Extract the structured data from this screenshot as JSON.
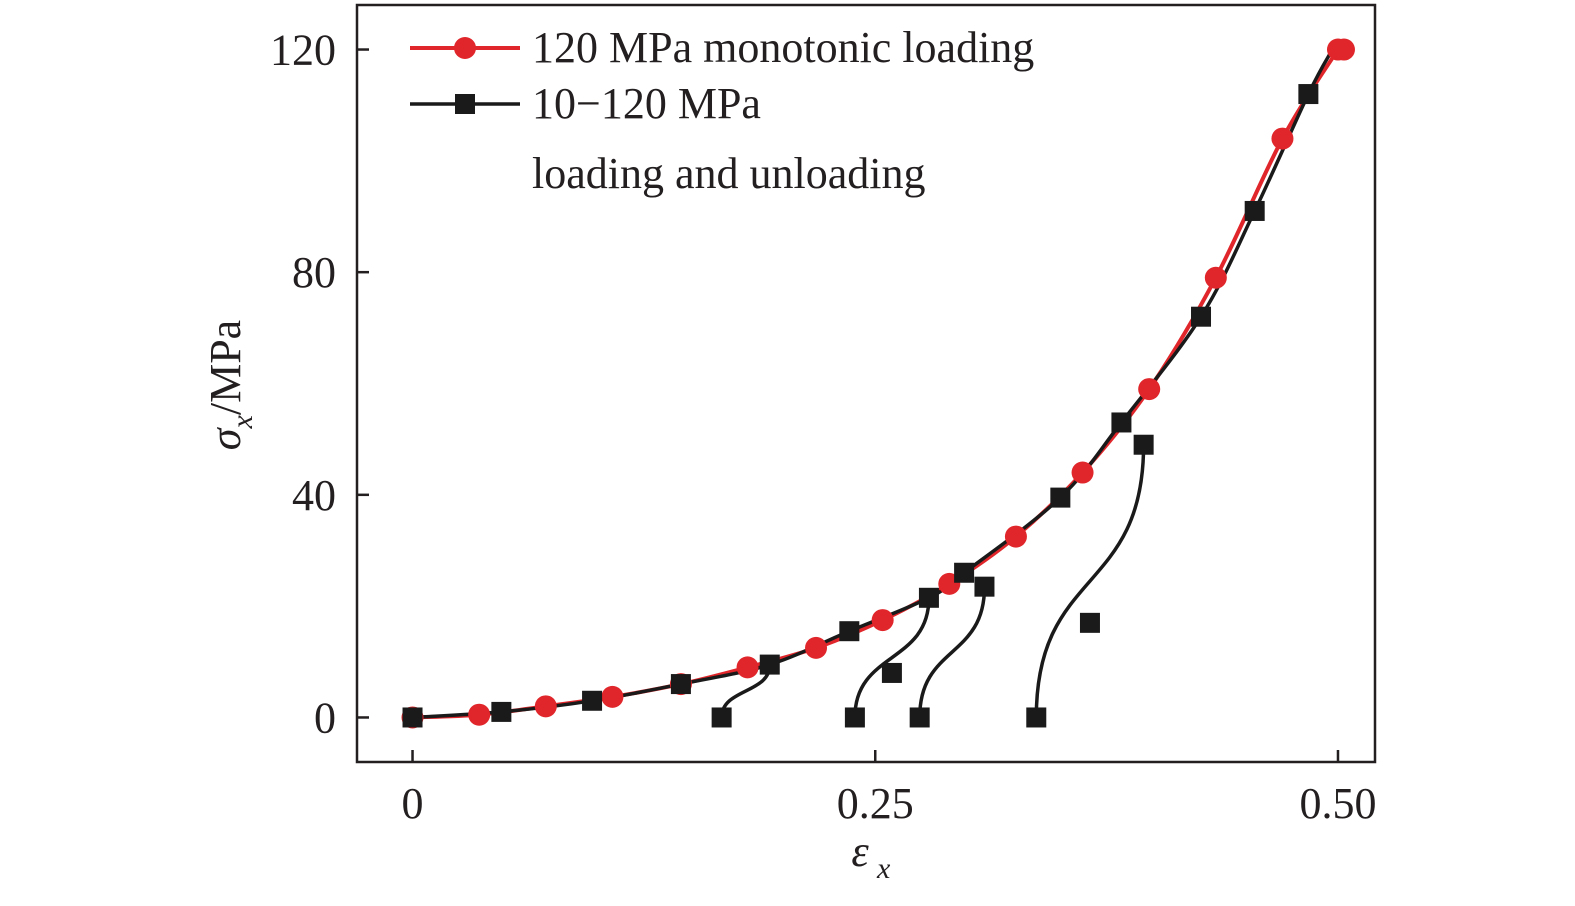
{
  "chart_data": {
    "type": "line",
    "xlabel": {
      "symbol": "ε",
      "subscript": "x"
    },
    "ylabel": {
      "symbol": "σ",
      "subscript": "x",
      "unit": "/MPa"
    },
    "xlim": [
      -0.03,
      0.52
    ],
    "ylim": [
      -8,
      128
    ],
    "xticks": [
      0,
      0.25,
      0.5
    ],
    "xtick_labels": [
      "0",
      "0.25",
      "0.50"
    ],
    "yticks": [
      0,
      40,
      80,
      120
    ],
    "ytick_labels": [
      "0",
      "40",
      "80",
      "120"
    ],
    "grid": false,
    "legend_position": "top-left",
    "series": [
      {
        "name": "120 MPa monotonic loading",
        "color": "#e0262a",
        "marker": "circle",
        "x": [
          0,
          0.036,
          0.072,
          0.108,
          0.145,
          0.181,
          0.218,
          0.254,
          0.29,
          0.326,
          0.362,
          0.398,
          0.434,
          0.47,
          0.5
        ],
        "y": [
          0,
          0.5,
          2,
          3.7,
          6,
          9,
          12.5,
          17.5,
          24,
          32.5,
          44,
          59,
          79,
          104,
          120
        ]
      },
      {
        "name": "10−120 MPa\nloading and unloading",
        "color": "#1a1a1a",
        "marker": "square",
        "x": [
          0,
          0.048,
          0.097,
          0.145,
          0.193,
          0.236,
          0.279,
          0.298,
          0.35,
          0.383,
          0.426,
          0.455,
          0.484
        ],
        "y": [
          0,
          1,
          3,
          6,
          9.5,
          15.5,
          21.5,
          26,
          39.5,
          53,
          72,
          91,
          112
        ],
        "unloading_branches": [
          {
            "x": [
              0.167,
              0.193
            ],
            "y": [
              0,
              9.5
            ]
          },
          {
            "x": [
              0.239,
              0.259,
              0.279
            ],
            "y": [
              0,
              8,
              21.5
            ]
          },
          {
            "x": [
              0.274,
              0.309
            ],
            "y": [
              0,
              23.5
            ]
          },
          {
            "x": [
              0.337,
              0.366,
              0.395
            ],
            "y": [
              0,
              17,
              49
            ]
          }
        ]
      }
    ]
  }
}
